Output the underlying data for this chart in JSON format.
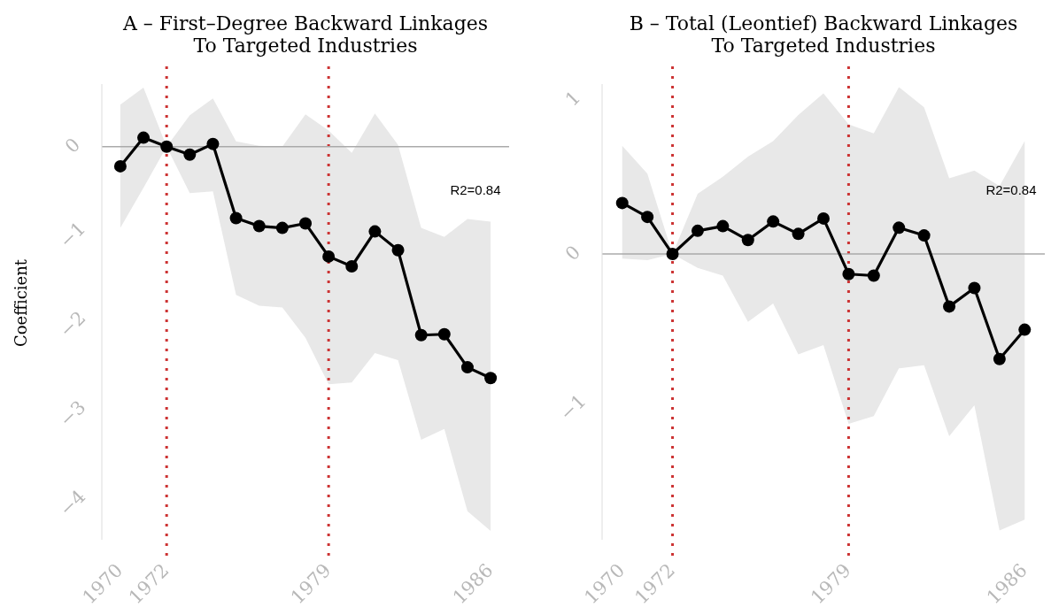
{
  "chart_data": [
    {
      "type": "line",
      "title": "A – First–Degree Backward Linkages\nTo Targeted Industries",
      "ylabel": "Coefficient",
      "x": [
        1970,
        1971,
        1972,
        1973,
        1974,
        1975,
        1976,
        1977,
        1978,
        1979,
        1980,
        1981,
        1982,
        1983,
        1984,
        1985,
        1986
      ],
      "series": [
        {
          "color": "#000000",
          "values": [
            -0.22,
            0.1,
            0,
            -0.09,
            0.03,
            -0.8,
            -0.89,
            -0.91,
            -0.86,
            -1.23,
            -1.34,
            -0.95,
            -1.16,
            -2.11,
            -2.1,
            -2.47,
            -2.59
          ],
          "lower": [
            -0.91,
            -0.46,
            0,
            -0.52,
            -0.5,
            -1.66,
            -1.78,
            -1.8,
            -2.14,
            -2.66,
            -2.64,
            -2.31,
            -2.39,
            -3.28,
            -3.16,
            -4.08,
            -4.3
          ],
          "upper": [
            0.47,
            0.66,
            0,
            0.35,
            0.54,
            0.06,
            0.01,
            0,
            0.36,
            0.18,
            -0.07,
            0.37,
            0.02,
            -0.91,
            -1.01,
            -0.81,
            -0.84
          ]
        }
      ],
      "xlim": [
        1969.2,
        1986.8
      ],
      "xticks": [
        1970,
        1972,
        1979,
        1986
      ],
      "ylim": [
        -4.4,
        0.7
      ],
      "yticks": [
        -4,
        -3,
        -2,
        -1,
        0
      ],
      "ref_lines": [
        {
          "axis": "x",
          "value": 1972,
          "color": "#cc3333",
          "line_style": "dotted"
        },
        {
          "axis": "x",
          "value": 1979,
          "color": "#cc3333",
          "line_style": "dotted"
        },
        {
          "axis": "y",
          "value": 0,
          "color": "#aaaaaa",
          "line_style": "solid"
        }
      ],
      "annotations": [
        "R2=0.84"
      ],
      "marker": "circle",
      "line_style": "solid",
      "grid": false
    },
    {
      "type": "line",
      "title": "B – Total (Leontief) Backward Linkages\nTo Targeted Industries",
      "x": [
        1970,
        1971,
        1972,
        1973,
        1974,
        1975,
        1976,
        1977,
        1978,
        1979,
        1980,
        1981,
        1982,
        1983,
        1984,
        1985,
        1986
      ],
      "series": [
        {
          "color": "#000000",
          "values": [
            0.33,
            0.24,
            0,
            0.15,
            0.18,
            0.09,
            0.21,
            0.13,
            0.23,
            -0.13,
            -0.14,
            0.17,
            0.12,
            -0.34,
            -0.22,
            -0.68,
            -0.49
          ],
          "lower": [
            -0.03,
            -0.04,
            0,
            -0.09,
            -0.14,
            -0.44,
            -0.32,
            -0.65,
            -0.59,
            -1.1,
            -1.05,
            -0.74,
            -0.72,
            -1.18,
            -0.98,
            -1.79,
            -1.72
          ],
          "upper": [
            0.7,
            0.52,
            0,
            0.39,
            0.5,
            0.63,
            0.73,
            0.9,
            1.04,
            0.84,
            0.78,
            1.08,
            0.95,
            0.49,
            0.54,
            0.44,
            0.73
          ]
        }
      ],
      "xlim": [
        1969.2,
        1986.8
      ],
      "xticks": [
        1970,
        1972,
        1979,
        1986
      ],
      "ylim": [
        -1.85,
        1.1
      ],
      "yticks": [
        -1,
        0,
        1
      ],
      "ref_lines": [
        {
          "axis": "x",
          "value": 1972,
          "color": "#cc3333",
          "line_style": "dotted"
        },
        {
          "axis": "x",
          "value": 1979,
          "color": "#cc3333",
          "line_style": "dotted"
        },
        {
          "axis": "y",
          "value": 0,
          "color": "#aaaaaa",
          "line_style": "solid"
        }
      ],
      "annotations": [
        "R2=0.84"
      ],
      "marker": "circle",
      "line_style": "solid",
      "grid": false
    }
  ]
}
